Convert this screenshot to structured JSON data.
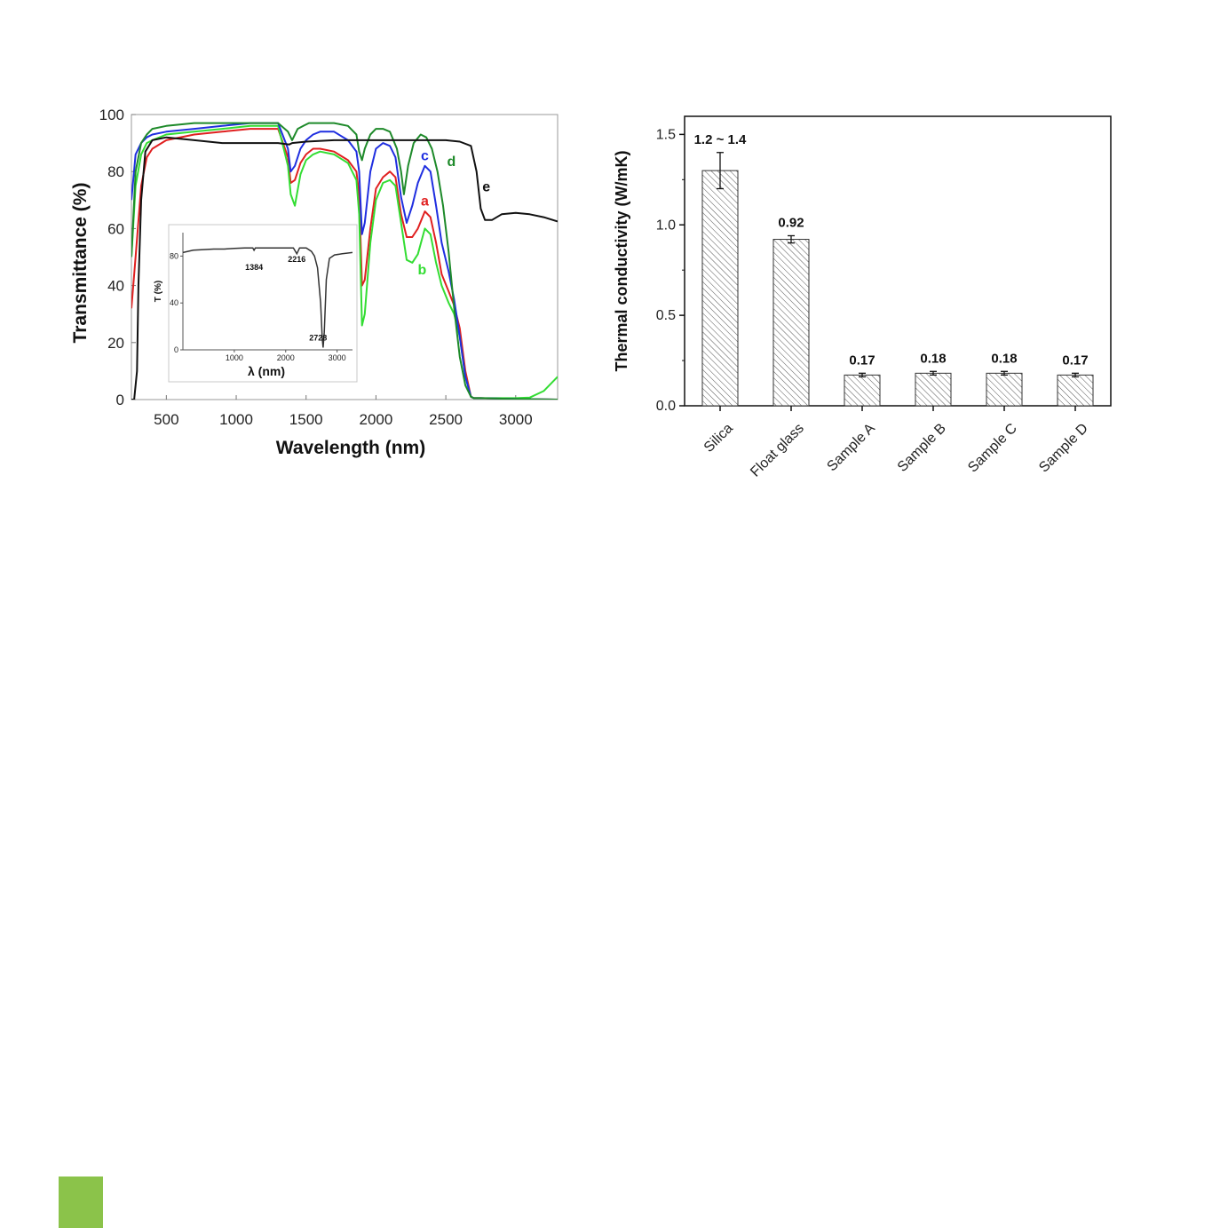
{
  "accent": {
    "corner_block_color": "#8bc34a"
  },
  "chart_data": [
    {
      "type": "line",
      "xlabel": "Wavelength (nm)",
      "ylabel": "Transmittance (%)",
      "xlim": [
        250,
        3300
      ],
      "ylim": [
        0,
        100
      ],
      "xticks": [
        500,
        1000,
        1500,
        2000,
        2500,
        3000
      ],
      "yticks": [
        0,
        20,
        40,
        60,
        80,
        100
      ],
      "grid": false,
      "series": [
        {
          "name": "a",
          "color": "#e02020",
          "x": [
            250,
            280,
            320,
            360,
            400,
            500,
            700,
            900,
            1100,
            1300,
            1370,
            1390,
            1420,
            1460,
            1500,
            1550,
            1600,
            1700,
            1800,
            1860,
            1880,
            1900,
            1920,
            1960,
            2000,
            2050,
            2100,
            2140,
            2180,
            2220,
            2260,
            2300,
            2350,
            2390,
            2430,
            2470,
            2520,
            2560,
            2600,
            2640,
            2680,
            2700,
            2750,
            3000,
            3300
          ],
          "y": [
            32,
            50,
            75,
            85,
            88,
            91,
            93,
            94,
            95,
            95,
            85,
            76,
            77,
            83,
            86,
            88,
            88,
            87,
            84,
            80,
            72,
            40,
            42,
            60,
            74,
            78,
            80,
            78,
            65,
            57,
            57,
            60,
            66,
            64,
            55,
            44,
            38,
            33,
            25,
            10,
            1,
            0.5,
            0.5,
            0.2,
            0
          ]
        },
        {
          "name": "b",
          "color": "#33dd33",
          "x": [
            250,
            280,
            320,
            360,
            400,
            500,
            700,
            900,
            1100,
            1300,
            1370,
            1390,
            1420,
            1460,
            1500,
            1550,
            1600,
            1700,
            1800,
            1860,
            1880,
            1900,
            1920,
            1960,
            2000,
            2050,
            2100,
            2140,
            2180,
            2220,
            2260,
            2300,
            2350,
            2390,
            2430,
            2470,
            2520,
            2560,
            2600,
            2640,
            2680,
            2700,
            2750,
            3000,
            3100,
            3200,
            3300
          ],
          "y": [
            50,
            75,
            86,
            90,
            91,
            93,
            94,
            95,
            96,
            96,
            82,
            72,
            68,
            79,
            84,
            86,
            87,
            86,
            83,
            77,
            65,
            26,
            30,
            55,
            70,
            76,
            77,
            75,
            62,
            49,
            48,
            51,
            60,
            58,
            48,
            40,
            34,
            30,
            22,
            8,
            1,
            0.5,
            0.5,
            0.5,
            0.7,
            3,
            8
          ]
        },
        {
          "name": "c",
          "color": "#1f2ee0",
          "x": [
            250,
            280,
            320,
            360,
            400,
            500,
            700,
            900,
            1100,
            1300,
            1370,
            1390,
            1420,
            1460,
            1500,
            1550,
            1600,
            1700,
            1800,
            1860,
            1880,
            1900,
            1920,
            1960,
            2000,
            2050,
            2100,
            2140,
            2180,
            2220,
            2260,
            2300,
            2350,
            2390,
            2430,
            2470,
            2520,
            2560,
            2600,
            2640,
            2680,
            2700,
            2750,
            3000,
            3300
          ],
          "y": [
            70,
            86,
            90,
            92,
            93,
            94,
            95,
            96,
            97,
            97,
            88,
            80,
            82,
            88,
            91,
            93,
            94,
            94,
            91,
            87,
            80,
            58,
            62,
            80,
            88,
            90,
            89,
            85,
            71,
            62,
            68,
            76,
            82,
            80,
            68,
            55,
            45,
            35,
            22,
            8,
            1,
            0.5,
            0.5,
            0.2,
            0
          ]
        },
        {
          "name": "d",
          "color": "#1e8a2a",
          "x": [
            250,
            280,
            320,
            360,
            400,
            500,
            700,
            900,
            1100,
            1300,
            1370,
            1400,
            1440,
            1480,
            1520,
            1560,
            1600,
            1700,
            1800,
            1860,
            1880,
            1900,
            1920,
            1960,
            2000,
            2050,
            2100,
            2150,
            2180,
            2200,
            2230,
            2270,
            2320,
            2360,
            2400,
            2440,
            2480,
            2520,
            2560,
            2600,
            2640,
            2680,
            2700,
            2750,
            3000,
            3300
          ],
          "y": [
            50,
            80,
            90,
            93,
            95,
            96,
            97,
            97,
            97,
            97,
            94,
            91,
            95,
            96,
            97,
            97,
            97,
            97,
            96,
            93,
            87,
            84,
            88,
            93,
            95,
            95,
            94,
            88,
            80,
            72,
            82,
            90,
            93,
            92,
            88,
            80,
            68,
            52,
            32,
            15,
            5,
            1,
            0.5,
            0.5,
            0.2,
            0
          ]
        },
        {
          "name": "e",
          "color": "#111111",
          "x": [
            250,
            270,
            290,
            300,
            320,
            350,
            400,
            500,
            700,
            900,
            1100,
            1300,
            1380,
            1400,
            1500,
            1700,
            1900,
            2100,
            2300,
            2500,
            2600,
            2680,
            2720,
            2750,
            2780,
            2830,
            2900,
            3000,
            3100,
            3200,
            3300
          ],
          "y": [
            0,
            0,
            10,
            40,
            70,
            87,
            91,
            92,
            91,
            90,
            90,
            90,
            89.5,
            90,
            90.5,
            91,
            91,
            91,
            91,
            91,
            90.5,
            89,
            80,
            67,
            63,
            63,
            65,
            65.5,
            65,
            64,
            62.5
          ]
        }
      ],
      "labels": [
        {
          "text": "a",
          "x": 2350,
          "y": 68,
          "color": "#e02020"
        },
        {
          "text": "b",
          "x": 2330,
          "y": 44,
          "color": "#33dd33"
        },
        {
          "text": "c",
          "x": 2350,
          "y": 84,
          "color": "#1f2ee0"
        },
        {
          "text": "d",
          "x": 2540,
          "y": 82,
          "color": "#1e8a2a"
        },
        {
          "text": "e",
          "x": 2790,
          "y": 73,
          "color": "#111111"
        }
      ],
      "inset": {
        "type": "line",
        "xlabel": "λ (nm)",
        "ylabel": "T (%)",
        "xlim": [
          0,
          3300
        ],
        "ylim": [
          0,
          100
        ],
        "xticks": [
          1000,
          2000,
          3000
        ],
        "yticks": [
          0,
          40,
          80
        ],
        "series": [
          {
            "name": "",
            "color": "#333333",
            "x": [
              0,
              200,
              400,
              600,
              800,
              1000,
              1200,
              1360,
              1384,
              1410,
              1600,
              1900,
              2150,
              2216,
              2270,
              2400,
              2500,
              2560,
              2620,
              2680,
              2710,
              2728,
              2750,
              2790,
              2850,
              2950,
              3100,
              3300
            ],
            "y": [
              83,
              85,
              85.5,
              86,
              86,
              86.5,
              87,
              87,
              85,
              87,
              87,
              87,
              87,
              82,
              87,
              87,
              84,
              80,
              70,
              40,
              10,
              2,
              15,
              60,
              78,
              81,
              82,
              83
            ]
          }
        ],
        "annotations": [
          {
            "text": "1384",
            "x": 1384,
            "y": 68
          },
          {
            "text": "2216",
            "x": 2216,
            "y": 75
          },
          {
            "text": "2728",
            "x": 2630,
            "y": 8
          }
        ]
      }
    },
    {
      "type": "bar",
      "xlabel": "",
      "ylabel": "Thermal conductivity (W/mK)",
      "categories": [
        "Silica",
        "Float glass",
        "Sample A",
        "Sample B",
        "Sample C",
        "Sample D"
      ],
      "values": [
        1.3,
        0.92,
        0.17,
        0.18,
        0.18,
        0.17
      ],
      "errors": [
        0.1,
        0.02,
        0.01,
        0.01,
        0.01,
        0.01
      ],
      "value_labels": [
        "1.2 ~ 1.4",
        "0.92",
        "0.17",
        "0.18",
        "0.18",
        "0.17"
      ],
      "ylim": [
        0,
        1.6
      ],
      "yticks": [
        "0.0",
        "0.5",
        "1.0",
        "1.5"
      ],
      "bar_fill": "hatched",
      "grid": false
    }
  ]
}
